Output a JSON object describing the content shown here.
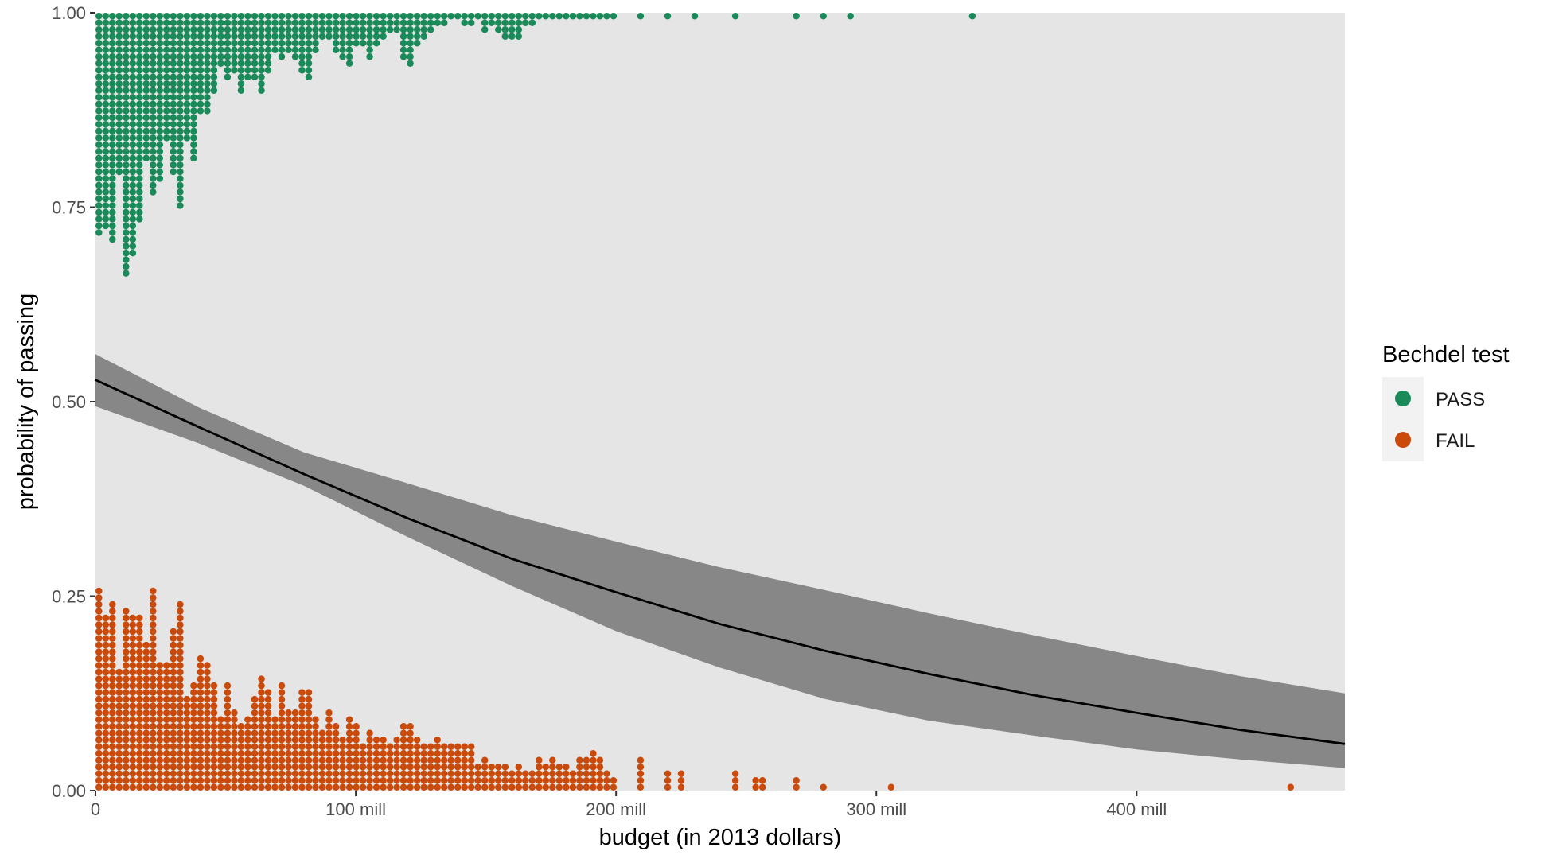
{
  "chart_data": {
    "type": "scatter",
    "subtype": "logistic-regression-dotplot",
    "title": "",
    "xlabel": "budget (in 2013 dollars)",
    "ylabel": "probability of passing",
    "xlim": [
      0,
      480
    ],
    "ylim": [
      0,
      1
    ],
    "x_unit": "millions of 2013 dollars",
    "x_ticks": [
      {
        "value": 0,
        "label": "0"
      },
      {
        "value": 100,
        "label": "100 mill"
      },
      {
        "value": 200,
        "label": "200 mill"
      },
      {
        "value": 300,
        "label": "300 mill"
      },
      {
        "value": 400,
        "label": "400 mill"
      }
    ],
    "y_ticks": [
      {
        "value": 0,
        "label": "0.00"
      },
      {
        "value": 0.25,
        "label": "0.25"
      },
      {
        "value": 0.5,
        "label": "0.50"
      },
      {
        "value": 0.75,
        "label": "0.75"
      },
      {
        "value": 1,
        "label": "1.00"
      }
    ],
    "grid": false,
    "panel_background": "#e5e5e5",
    "legend": {
      "title": "Bechdel test",
      "position": "right",
      "entries": [
        {
          "label": "PASS",
          "color": "#1b8a5a"
        },
        {
          "label": "FAIL",
          "color": "#c94a0a"
        }
      ]
    },
    "dot_stack": {
      "dot_diameter_pct_of_y": 0.0087,
      "stack_step_pct_of_y": 0.0087
    },
    "series": [
      {
        "name": "PASS",
        "color": "#1b8a5a",
        "anchor_y": 1,
        "direction": "down",
        "description": "approximate stacked-dot height profile (probability units) at binned budgets",
        "profile": {
          "x": [
            0,
            2,
            4,
            6,
            8,
            10,
            12,
            14,
            16,
            18,
            20,
            22,
            24,
            26,
            28,
            30,
            32,
            34,
            36,
            38,
            40,
            44,
            48,
            52,
            56,
            60,
            64,
            68,
            72,
            76,
            80,
            85,
            90,
            95,
            100,
            105,
            110,
            115,
            120,
            130,
            140,
            150,
            160,
            170,
            180,
            190,
            200,
            210,
            220,
            230,
            245,
            270,
            280,
            290,
            336
          ],
          "depth": [
            0.39,
            0.25,
            0.24,
            0.26,
            0.27,
            0.23,
            0.29,
            0.25,
            0.26,
            0.27,
            0.17,
            0.21,
            0.25,
            0.26,
            0.17,
            0.21,
            0.24,
            0.22,
            0.21,
            0.18,
            0.15,
            0.11,
            0.08,
            0.09,
            0.1,
            0.07,
            0.1,
            0.06,
            0.06,
            0.05,
            0.09,
            0.05,
            0.04,
            0.08,
            0.04,
            0.05,
            0.03,
            0.03,
            0.06,
            0.02,
            0.01,
            0.02,
            0.04,
            0.01,
            0.01,
            0.01,
            0.01,
            0.01,
            0.01,
            0.01,
            0.01,
            0.01,
            0.01,
            0.01,
            0.01
          ]
        }
      },
      {
        "name": "FAIL",
        "color": "#c94a0a",
        "anchor_y": 0,
        "direction": "up",
        "description": "approximate stacked-dot height profile (probability units) at binned budgets",
        "profile": {
          "x": [
            0,
            2,
            4,
            6,
            8,
            10,
            12,
            14,
            16,
            18,
            20,
            22,
            24,
            26,
            28,
            30,
            32,
            34,
            36,
            38,
            40,
            44,
            48,
            52,
            56,
            60,
            64,
            68,
            72,
            76,
            80,
            85,
            90,
            95,
            100,
            105,
            110,
            115,
            120,
            130,
            140,
            150,
            160,
            170,
            180,
            190,
            200,
            210,
            220,
            225,
            245,
            255,
            270,
            280,
            305,
            460
          ],
          "depth": [
            0.38,
            0.22,
            0.19,
            0.24,
            0.16,
            0.22,
            0.19,
            0.18,
            0.2,
            0.24,
            0.19,
            0.24,
            0.16,
            0.25,
            0.18,
            0.21,
            0.25,
            0.14,
            0.17,
            0.13,
            0.2,
            0.14,
            0.11,
            0.15,
            0.08,
            0.1,
            0.14,
            0.11,
            0.14,
            0.09,
            0.14,
            0.09,
            0.11,
            0.09,
            0.08,
            0.07,
            0.06,
            0.09,
            0.07,
            0.06,
            0.06,
            0.04,
            0.03,
            0.04,
            0.03,
            0.05,
            0.02,
            0.04,
            0.03,
            0.03,
            0.03,
            0.02,
            0.02,
            0.01,
            0.01,
            0.01
          ]
        }
      },
      {
        "name": "",
        "kind": "fitted-line",
        "color": "#000000",
        "x": [
          0,
          40,
          80,
          120,
          160,
          200,
          240,
          280,
          320,
          360,
          400,
          440,
          480
        ],
        "y": [
          0.528,
          0.467,
          0.407,
          0.35,
          0.298,
          0.255,
          0.214,
          0.18,
          0.15,
          0.123,
          0.1,
          0.078,
          0.06
        ]
      },
      {
        "name": "",
        "kind": "confidence-band",
        "color": "#878787",
        "x": [
          0,
          40,
          80,
          120,
          160,
          200,
          240,
          280,
          320,
          360,
          400,
          440,
          480
        ],
        "lower": [
          0.494,
          0.446,
          0.392,
          0.326,
          0.263,
          0.205,
          0.158,
          0.118,
          0.09,
          0.071,
          0.053,
          0.04,
          0.029
        ],
        "upper": [
          0.561,
          0.492,
          0.435,
          0.395,
          0.354,
          0.32,
          0.287,
          0.258,
          0.228,
          0.2,
          0.173,
          0.147,
          0.125
        ]
      }
    ]
  }
}
